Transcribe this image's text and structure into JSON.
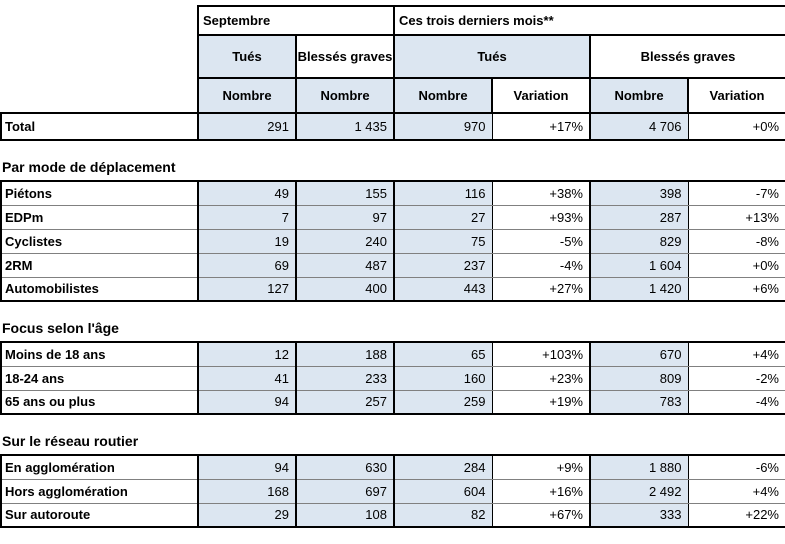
{
  "colors": {
    "shaded_cell": "#dce6f1",
    "border_black": "#000000",
    "border_gray": "#808080"
  },
  "header": {
    "period_month": "Septembre",
    "period_quarter": "Ces trois derniers mois**",
    "killed": "Tués",
    "seriously_injured": "Blessés graves",
    "number": "Nombre",
    "variation": "Variation"
  },
  "total_row": {
    "label": "Total",
    "values": [
      "291",
      "1 435",
      "970",
      "+17%",
      "4 706",
      "+0%"
    ]
  },
  "sections": [
    {
      "title": "Par mode de déplacement",
      "rows": [
        {
          "label": "Piétons",
          "values": [
            "49",
            "155",
            "116",
            "+38%",
            "398",
            "-7%"
          ]
        },
        {
          "label": "EDPm",
          "values": [
            "7",
            "97",
            "27",
            "+93%",
            "287",
            "+13%"
          ]
        },
        {
          "label": "Cyclistes",
          "values": [
            "19",
            "240",
            "75",
            "-5%",
            "829",
            "-8%"
          ]
        },
        {
          "label": "2RM",
          "values": [
            "69",
            "487",
            "237",
            "-4%",
            "1 604",
            "+0%"
          ]
        },
        {
          "label": "Automobilistes",
          "values": [
            "127",
            "400",
            "443",
            "+27%",
            "1 420",
            "+6%"
          ]
        }
      ]
    },
    {
      "title": "Focus selon l'âge",
      "rows": [
        {
          "label": "Moins de 18 ans",
          "values": [
            "12",
            "188",
            "65",
            "+103%",
            "670",
            "+4%"
          ]
        },
        {
          "label": "18-24 ans",
          "values": [
            "41",
            "233",
            "160",
            "+23%",
            "809",
            "-2%"
          ]
        },
        {
          "label": "65 ans ou plus",
          "values": [
            "94",
            "257",
            "259",
            "+19%",
            "783",
            "-4%"
          ]
        }
      ]
    },
    {
      "title": "Sur le réseau routier",
      "rows": [
        {
          "label": "En agglomération",
          "values": [
            "94",
            "630",
            "284",
            "+9%",
            "1 880",
            "-6%"
          ]
        },
        {
          "label": "Hors agglomération",
          "values": [
            "168",
            "697",
            "604",
            "+16%",
            "2 492",
            "+4%"
          ]
        },
        {
          "label": "Sur autoroute",
          "values": [
            "29",
            "108",
            "82",
            "+67%",
            "333",
            "+22%"
          ]
        }
      ]
    }
  ]
}
